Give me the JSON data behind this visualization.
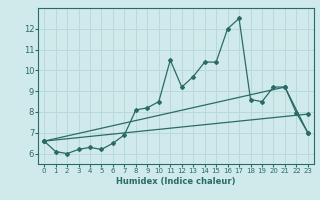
{
  "xlabel": "Humidex (Indice chaleur)",
  "background_color": "#d0eaec",
  "grid_color": "#b8d8da",
  "line_color": "#2a6b65",
  "xlim": [
    -0.5,
    23.5
  ],
  "ylim": [
    5.5,
    13.0
  ],
  "yticks": [
    6,
    7,
    8,
    9,
    10,
    11,
    12
  ],
  "xticks": [
    0,
    1,
    2,
    3,
    4,
    5,
    6,
    7,
    8,
    9,
    10,
    11,
    12,
    13,
    14,
    15,
    16,
    17,
    18,
    19,
    20,
    21,
    22,
    23
  ],
  "series1_x": [
    0,
    1,
    2,
    3,
    4,
    5,
    6,
    7,
    8,
    9,
    10,
    11,
    12,
    13,
    14,
    15,
    16,
    17,
    18,
    19,
    20,
    21,
    22,
    23
  ],
  "series1_y": [
    6.6,
    6.1,
    6.0,
    6.2,
    6.3,
    6.2,
    6.5,
    6.9,
    8.1,
    8.2,
    8.5,
    10.5,
    9.2,
    9.7,
    10.4,
    10.4,
    12.0,
    12.5,
    8.6,
    8.5,
    9.2,
    9.2,
    7.95,
    7.0
  ],
  "series2_x": [
    0,
    23
  ],
  "series2_y": [
    6.6,
    7.9
  ],
  "series3_x": [
    0,
    21,
    23
  ],
  "series3_y": [
    6.6,
    9.2,
    7.0
  ]
}
